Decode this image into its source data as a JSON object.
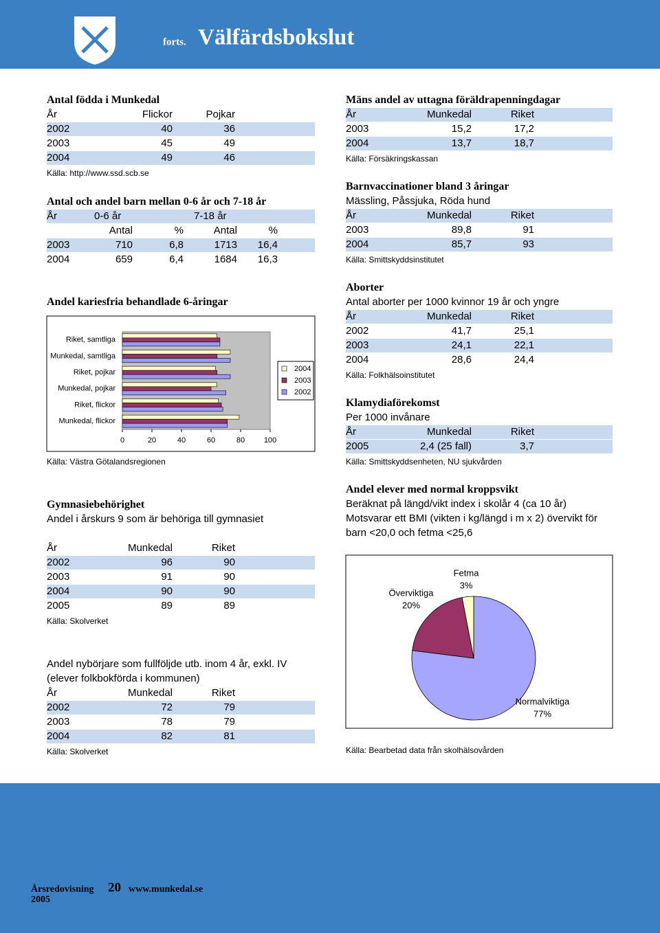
{
  "header": {
    "prefix": "forts.",
    "title": "Välfärdsbokslut"
  },
  "sections": [
    {
      "title": "Antal födda i Munkedal",
      "header": [
        "År",
        "Flickor",
        "Pojkar"
      ],
      "rows": [
        [
          "2002",
          "40",
          "36"
        ],
        [
          "2003",
          "45",
          "49"
        ],
        [
          "2004",
          "49",
          "46"
        ]
      ],
      "source": "Källa: http://www.ssd.scb.se"
    },
    {
      "title": "Antal och andel barn mellan 0-6 år och 7-18 år",
      "header": [
        "År",
        "0-6 år",
        "7-18 år"
      ],
      "subheader": [
        "Antal",
        "%",
        "Antal",
        "%"
      ],
      "rows": [
        [
          "2003",
          "710",
          "6,8",
          "1713",
          "16,4"
        ],
        [
          "2004",
          "659",
          "6,4",
          "1684",
          "16,3"
        ]
      ]
    },
    {
      "title": "Gymnasiebehörighet",
      "lines": [
        "Andel i årskurs 9 som är behöriga till gymnasiet"
      ],
      "header": [
        "År",
        "Munkedal",
        "Riket"
      ],
      "rows": [
        [
          "2002",
          "96",
          "90"
        ],
        [
          "2003",
          "91",
          "90"
        ],
        [
          "2004",
          "90",
          "90"
        ],
        [
          "2005",
          "89",
          "89"
        ]
      ],
      "source": "Källa: Skolverket"
    },
    {
      "lines": [
        "Andel nybörjare som fullföljde utb. inom 4 år, exkl. IV",
        "(elever folkbokförda i kommunen)"
      ],
      "header": [
        "År",
        "Munkedal",
        "Riket"
      ],
      "rows": [
        [
          "2002",
          "72",
          "79"
        ],
        [
          "2003",
          "78",
          "79"
        ],
        [
          "2004",
          "82",
          "81"
        ]
      ],
      "source": "Källa: Skolverket"
    },
    {
      "title": "Mäns andel av uttagna föräldrapenningdagar",
      "header": [
        "År",
        "Munkedal",
        "Riket"
      ],
      "rows": [
        [
          "2003",
          "15,2",
          "17,2"
        ],
        [
          "2004",
          "13,7",
          "18,7"
        ]
      ],
      "source": "Källa: Försäkringskassan"
    },
    {
      "title": "Barnvaccinationer bland 3 åringar",
      "lines": [
        "Mässling, Påssjuka, Röda hund"
      ],
      "header": [
        "År",
        "Munkedal",
        "Riket"
      ],
      "rows": [
        [
          "2003",
          "89,8",
          "91"
        ],
        [
          "2004",
          "85,7",
          "93"
        ]
      ],
      "source": "Källa: Smittskyddsinstitutet"
    },
    {
      "title": "Aborter",
      "lines": [
        "Antal aborter per 1000 kvinnor 19 år och yngre"
      ],
      "header": [
        "År",
        "Munkedal",
        "Riket"
      ],
      "rows": [
        [
          "2002",
          "41,7",
          "25,1"
        ],
        [
          "2003",
          "24,1",
          "22,1"
        ],
        [
          "2004",
          "28,6",
          "24,4"
        ]
      ],
      "source": "Källa: Folkhälsoinstitutet"
    },
    {
      "title": "Klamydiaförekomst",
      "lines": [
        "Per 1000 invånare"
      ],
      "header": [
        "År",
        "Munkedal",
        "Riket"
      ],
      "rows": [
        [
          "2005",
          "2,4 (25 fall)",
          "3,7"
        ]
      ],
      "source": "Källa: Smittskyddsenheten, NU sjukvården"
    },
    {
      "title": "Andel elever med normal kroppsvikt",
      "lines": [
        "Beräknat på längd/vikt index i skolår 4 (ca 10 år)",
        "Motsvarar ett BMI (vikten i kg/längd i m x 2) övervikt för",
        "barn <20,0 och fetma <25,6"
      ],
      "source": "Källa: Bearbetad data från skolhälsovården"
    }
  ],
  "chart_data": [
    {
      "type": "bar",
      "orientation": "horizontal",
      "title": "Andel kariesfria behandlade 6-åringar",
      "source": "Källa: Västra Götalandsregionen",
      "categories": [
        "Riket, samtliga",
        "Munkedal, samtliga",
        "Riket, pojkar",
        "Munkedal, pojkar",
        "Riket, flickor",
        "Munkedal, flickor"
      ],
      "series": [
        {
          "name": "2004",
          "color": "#ffffcc",
          "values": [
            64,
            73,
            63,
            64,
            65,
            79
          ]
        },
        {
          "name": "2003",
          "color": "#993366",
          "values": [
            66,
            64,
            64,
            60,
            67,
            71
          ]
        },
        {
          "name": "2002",
          "color": "#9999ff",
          "values": [
            66,
            73,
            73,
            70,
            68,
            71
          ]
        }
      ],
      "xlim": [
        0,
        100
      ],
      "xticks": [
        0,
        20,
        40,
        60,
        80,
        100
      ],
      "grid": false,
      "legend": "right"
    },
    {
      "type": "pie",
      "categories": [
        "Normalviktiga",
        "Överviktiga",
        "Fetma"
      ],
      "values": [
        77,
        20,
        3
      ],
      "value_labels": [
        "77%",
        "20%",
        "3%"
      ],
      "colors": [
        "#a6a6ff",
        "#993366",
        "#ffffcc"
      ]
    }
  ],
  "footer": {
    "report": "Årsredovisning",
    "year": "2005",
    "page": "20",
    "url": "www.munkedal.se"
  }
}
